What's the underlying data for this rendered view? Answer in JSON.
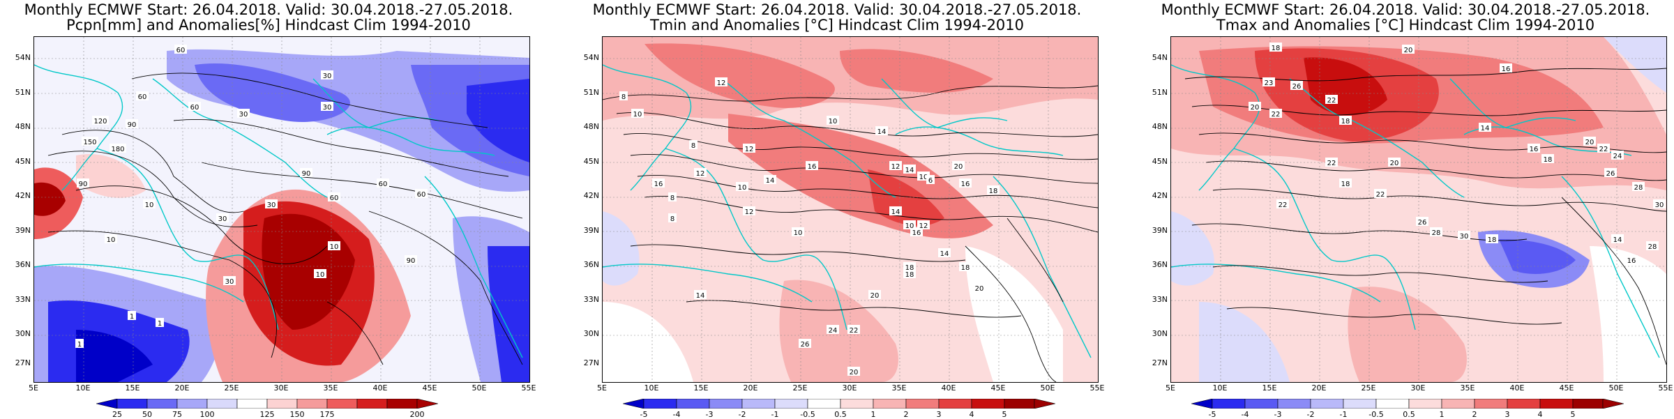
{
  "panels": [
    {
      "title_line1": "Monthly ECMWF Start: 26.04.2018. Valid: 30.04.2018.-27.05.2018.",
      "title_line2": "Pcpn[mm] and Anomalies[%] Hindcast Clim 1994-2010",
      "lat_labels": [
        "54N",
        "51N",
        "48N",
        "45N",
        "42N",
        "39N",
        "36N",
        "33N",
        "30N",
        "27N"
      ],
      "lon_labels": [
        "5E",
        "10E",
        "15E",
        "20E",
        "25E",
        "30E",
        "35E",
        "40E",
        "45E",
        "50E",
        "55E"
      ],
      "colorbar_ticks": [
        "25",
        "50",
        "75",
        "100",
        "125",
        "150",
        "175",
        "200"
      ],
      "colorbar_colors": [
        "#0000c8",
        "#2b2bf0",
        "#6a6af5",
        "#a7a7f8",
        "#d9d9fb",
        "#ffffff",
        "#fcd2d2",
        "#f59b9b",
        "#ee5c5c",
        "#d51d1d",
        "#a80000"
      ],
      "contour_labels": [
        "60",
        "30",
        "60",
        "90",
        "120",
        "150",
        "180",
        "90",
        "60",
        "30",
        "10",
        "10",
        "30",
        "60",
        "90",
        "10",
        "30",
        "30",
        "60",
        "90",
        "60",
        "10",
        "1",
        "1",
        "1",
        "30"
      ]
    },
    {
      "title_line1": "Monthly ECMWF Start: 26.04.2018. Valid: 30.04.2018.-27.05.2018.",
      "title_line2": "Tmin and Anomalies [°C] Hindcast Clim 1994-2010",
      "lat_labels": [
        "54N",
        "51N",
        "48N",
        "45N",
        "42N",
        "39N",
        "36N",
        "33N",
        "30N",
        "27N"
      ],
      "lon_labels": [
        "5E",
        "10E",
        "15E",
        "20E",
        "25E",
        "30E",
        "35E",
        "40E",
        "45E",
        "50E",
        "55E"
      ],
      "colorbar_ticks": [
        "-5",
        "-4",
        "-3",
        "-2",
        "-1",
        "-0.5",
        "0.5",
        "1",
        "2",
        "3",
        "4",
        "5"
      ],
      "colorbar_colors": [
        "#0000c8",
        "#2b2bf0",
        "#5a5af3",
        "#8b8bf6",
        "#b9b9f9",
        "#dcdcfb",
        "#ffffff",
        "#fcdcdc",
        "#f8b4b4",
        "#f17c7c",
        "#e44040",
        "#c80e0e",
        "#9c0000"
      ],
      "contour_labels": [
        "8",
        "10",
        "12",
        "8",
        "12",
        "10",
        "14",
        "16",
        "8",
        "12",
        "10",
        "14",
        "16",
        "12",
        "14",
        "10",
        "12",
        "8",
        "10",
        "14",
        "16",
        "18",
        "20",
        "22",
        "24",
        "26",
        "20",
        "18",
        "14",
        "12",
        "10",
        "6",
        "16",
        "18",
        "20",
        "14",
        "20",
        "18"
      ]
    },
    {
      "title_line1": "Monthly ECMWF Start: 26.04.2018. Valid: 30.04.2018.-27.05.2018.",
      "title_line2": "Tmax and Anomalies [°C] Hindcast Clim 1994-2010",
      "lat_labels": [
        "54N",
        "51N",
        "48N",
        "45N",
        "42N",
        "39N",
        "36N",
        "33N",
        "30N",
        "27N"
      ],
      "lon_labels": [
        "5E",
        "10E",
        "15E",
        "20E",
        "25E",
        "30E",
        "35E",
        "40E",
        "45E",
        "50E",
        "55E"
      ],
      "colorbar_ticks": [
        "-5",
        "-4",
        "-3",
        "-2",
        "-1",
        "-0.5",
        "0.5",
        "1",
        "2",
        "3",
        "4",
        "5"
      ],
      "colorbar_colors": [
        "#0000c8",
        "#2b2bf0",
        "#5a5af3",
        "#8b8bf6",
        "#b9b9f9",
        "#dcdcfb",
        "#ffffff",
        "#fcdcdc",
        "#f8b4b4",
        "#f17c7c",
        "#e44040",
        "#c80e0e",
        "#9c0000"
      ],
      "contour_labels": [
        "18",
        "20",
        "16",
        "23",
        "26",
        "22",
        "18",
        "20",
        "22",
        "14",
        "16",
        "18",
        "20",
        "22",
        "24",
        "26",
        "28",
        "30",
        "22",
        "18",
        "20",
        "22",
        "26",
        "28",
        "30",
        "18",
        "22",
        "14",
        "16",
        "28"
      ]
    }
  ]
}
